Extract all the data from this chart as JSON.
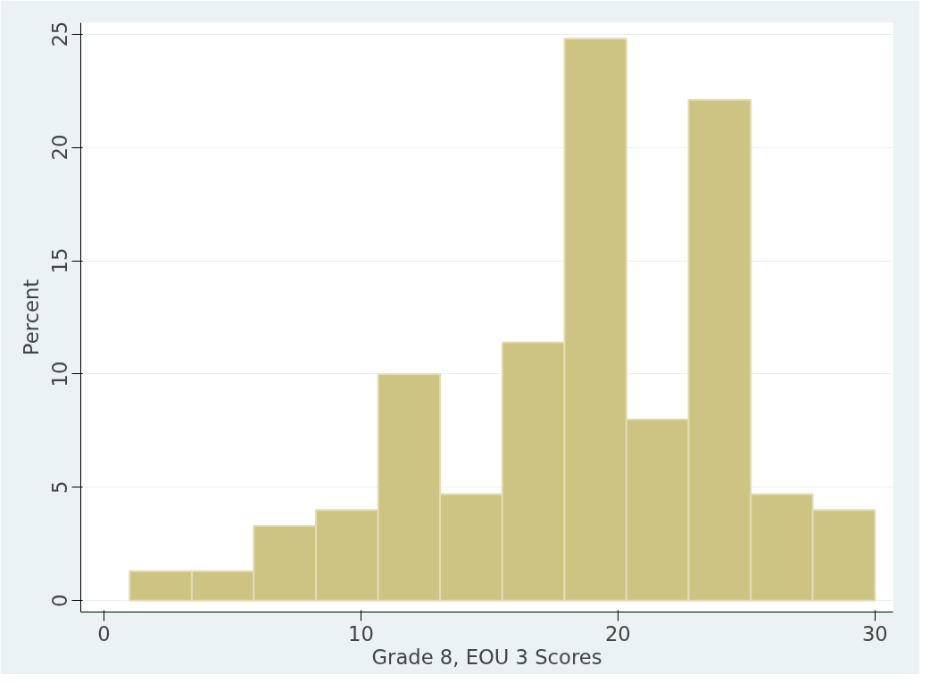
{
  "chart_data": {
    "type": "histogram",
    "xlabel": "Grade 8, EOU 3 Scores",
    "ylabel": "Percent",
    "bins": [
      1,
      3.42,
      5.83,
      8.25,
      10.67,
      13.08,
      15.5,
      17.92,
      20.33,
      22.75,
      25.17,
      27.58,
      30
    ],
    "values": [
      1.3,
      1.3,
      3.3,
      4.0,
      10.0,
      4.7,
      11.4,
      24.8,
      8.0,
      22.1,
      4.7,
      4.0
    ],
    "color": "#cdc383",
    "xlim": [
      -0.9,
      30.7
    ],
    "ylim": [
      -0.5,
      25.5
    ],
    "xticks": [
      0,
      10,
      20,
      30
    ],
    "yticks": [
      0,
      5,
      10,
      15,
      20,
      25
    ],
    "grid": "y"
  }
}
